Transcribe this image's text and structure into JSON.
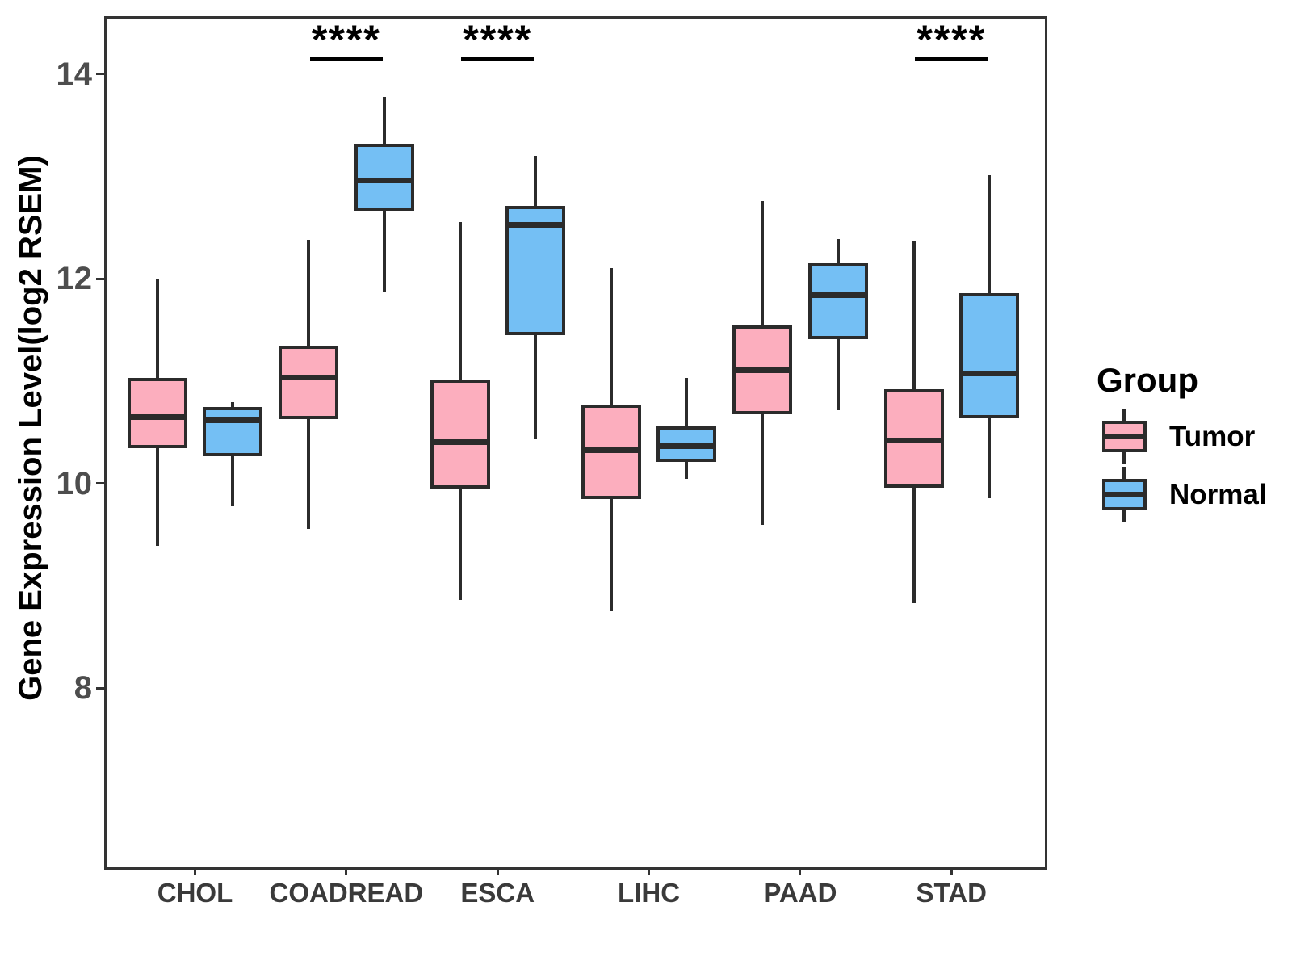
{
  "chart_data": {
    "type": "boxplot",
    "title": "",
    "xlabel": "",
    "ylabel": "Gene Expression Level(log2 RSEM)",
    "y_ticks": [
      14,
      12,
      10,
      8
    ],
    "ylim": [
      6.28,
      14.57
    ],
    "grid": false,
    "categories": [
      "CHOL",
      "COADREAD",
      "ESCA",
      "LIHC",
      "PAAD",
      "STAD"
    ],
    "series": [
      {
        "name": "Tumor",
        "color": "#FCAEBE",
        "boxes": [
          {
            "category": "CHOL",
            "low": 9.39,
            "q1": 10.35,
            "median": 10.65,
            "q3": 11.03,
            "high": 12.0
          },
          {
            "category": "COADREAD",
            "low": 9.56,
            "q1": 10.63,
            "median": 11.04,
            "q3": 11.35,
            "high": 12.38
          },
          {
            "category": "ESCA",
            "low": 8.86,
            "q1": 9.95,
            "median": 10.41,
            "q3": 11.02,
            "high": 12.56
          },
          {
            "category": "LIHC",
            "low": 8.75,
            "q1": 9.85,
            "median": 10.33,
            "q3": 10.77,
            "high": 12.11
          },
          {
            "category": "PAAD",
            "low": 9.6,
            "q1": 10.68,
            "median": 11.11,
            "q3": 11.55,
            "high": 12.76
          },
          {
            "category": "STAD",
            "low": 8.83,
            "q1": 9.96,
            "median": 10.42,
            "q3": 10.92,
            "high": 12.37
          }
        ]
      },
      {
        "name": "Normal",
        "color": "#74BFF4",
        "boxes": [
          {
            "category": "CHOL",
            "low": 9.78,
            "q1": 10.27,
            "median": 10.62,
            "q3": 10.75,
            "high": 10.8
          },
          {
            "category": "COADREAD",
            "low": 11.87,
            "q1": 12.67,
            "median": 12.96,
            "q3": 13.32,
            "high": 13.78
          },
          {
            "category": "ESCA",
            "low": 10.43,
            "q1": 11.45,
            "median": 12.53,
            "q3": 12.71,
            "high": 13.2
          },
          {
            "category": "LIHC",
            "low": 10.05,
            "q1": 10.21,
            "median": 10.37,
            "q3": 10.56,
            "high": 11.03
          },
          {
            "category": "PAAD",
            "low": 10.72,
            "q1": 11.41,
            "median": 11.84,
            "q3": 12.15,
            "high": 12.39
          },
          {
            "category": "STAD",
            "low": 9.86,
            "q1": 10.64,
            "median": 11.08,
            "q3": 11.86,
            "high": 13.01
          }
        ]
      }
    ],
    "significance": [
      {
        "category": "COADREAD",
        "label": "****"
      },
      {
        "category": "ESCA",
        "label": "****"
      },
      {
        "category": "STAD",
        "label": "****"
      }
    ],
    "legend": {
      "title": "Group",
      "position": "right",
      "entries": [
        "Tumor",
        "Normal"
      ]
    }
  }
}
